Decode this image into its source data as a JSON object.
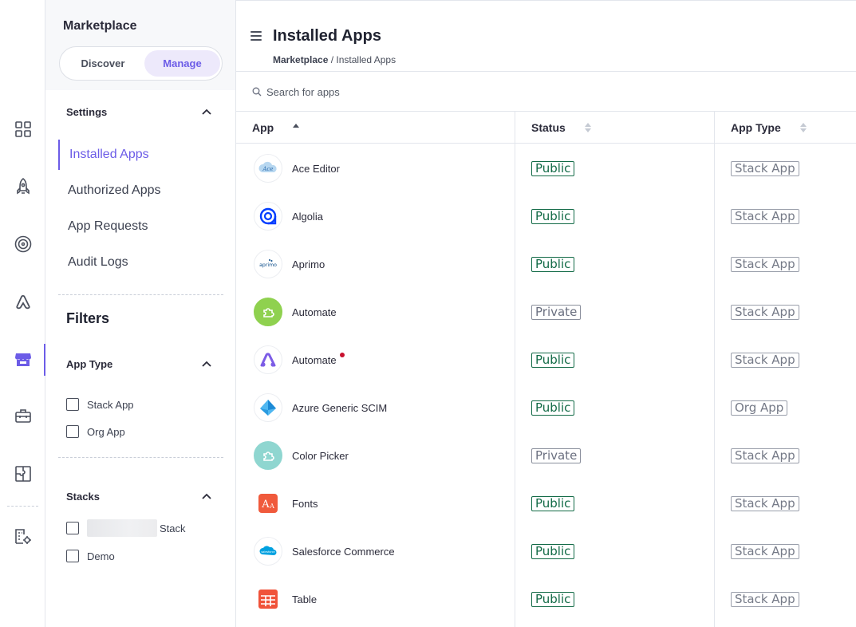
{
  "sidebar": {
    "title": "Marketplace",
    "tabs": {
      "discover": "Discover",
      "manage": "Manage"
    },
    "settings_heading": "Settings",
    "nav": [
      "Installed Apps",
      "Authorized Apps",
      "App Requests",
      "Audit Logs"
    ],
    "filters_title": "Filters",
    "app_type": {
      "heading": "App Type",
      "options": [
        "Stack App",
        "Org App"
      ]
    },
    "stacks": {
      "heading": "Stacks",
      "options": [
        "Stack",
        "Demo"
      ]
    }
  },
  "header": {
    "title": "Installed Apps",
    "breadcrumb_root": "Marketplace",
    "breadcrumb_sep": " / ",
    "breadcrumb_current": "Installed Apps"
  },
  "search": {
    "placeholder": "Search for apps"
  },
  "table": {
    "columns": [
      "App",
      "Status",
      "App Type"
    ],
    "rows": [
      {
        "name": "Ace Editor",
        "status": "Public",
        "type": "Stack App"
      },
      {
        "name": "Algolia",
        "status": "Public",
        "type": "Stack App"
      },
      {
        "name": "Aprimo",
        "status": "Public",
        "type": "Stack App"
      },
      {
        "name": "Automate",
        "status": "Private",
        "type": "Stack App"
      },
      {
        "name": "Automate",
        "status": "Public",
        "type": "Stack App"
      },
      {
        "name": "Azure Generic SCIM",
        "status": "Public",
        "type": "Org App"
      },
      {
        "name": "Color Picker",
        "status": "Private",
        "type": "Stack App"
      },
      {
        "name": "Fonts",
        "status": "Public",
        "type": "Stack App"
      },
      {
        "name": "Salesforce Commerce",
        "status": "Public",
        "type": "Stack App"
      },
      {
        "name": "Table",
        "status": "Public",
        "type": "Stack App"
      }
    ]
  },
  "logo_texts": {
    "ace": "Ace",
    "aprimo": "aprimo",
    "fonts": "A",
    "fonts_small": "A",
    "salesforce": "salesforce"
  },
  "colors": {
    "accent": "#6c5ce7",
    "public": "#136b47",
    "notification": "#c8102e"
  }
}
